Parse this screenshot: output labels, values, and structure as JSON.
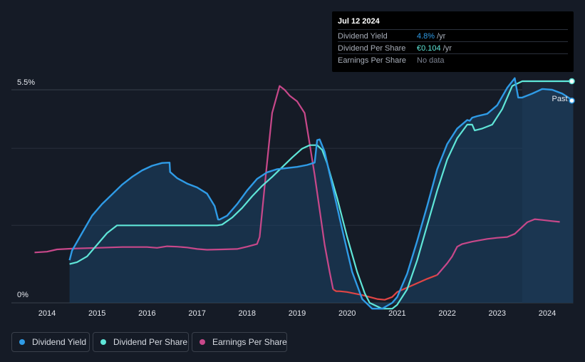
{
  "tooltip": {
    "date": "Jul 12 2024",
    "rows": [
      {
        "label": "Dividend Yield",
        "value": "4.8%",
        "unit": "/yr",
        "color": "#2f9be6"
      },
      {
        "label": "Dividend Per Share",
        "value": "€0.104",
        "unit": "/yr",
        "color": "#5fe6d8"
      },
      {
        "label": "Earnings Per Share",
        "value": "No data",
        "unit": "",
        "color": "#7c8290"
      }
    ]
  },
  "legend": [
    {
      "label": "Dividend Yield",
      "color": "#2f9be6"
    },
    {
      "label": "Dividend Per Share",
      "color": "#5fe6d8"
    },
    {
      "label": "Earnings Per Share",
      "color": "#c8488a"
    }
  ],
  "chart_data": {
    "type": "line",
    "ylim": [
      0,
      5.5
    ],
    "xlim": [
      2013.0,
      2024.52
    ],
    "ytick_labels": [
      "0%",
      "5.5%"
    ],
    "xtick_labels": [
      "2014",
      "2015",
      "2016",
      "2017",
      "2018",
      "2019",
      "2020",
      "2021",
      "2022",
      "2023",
      "2024"
    ],
    "xticks": [
      2014,
      2015,
      2016,
      2017,
      2018,
      2019,
      2020,
      2021,
      2022,
      2023,
      2024
    ],
    "past_label": "Past",
    "past_start": 2023.5,
    "eps_negative_color": "#e04545",
    "series": [
      {
        "name": "Dividend Yield",
        "color": "#2f9be6",
        "x": [
          2014.45,
          2014.5,
          2014.7,
          2014.9,
          2015.1,
          2015.3,
          2015.5,
          2015.7,
          2015.9,
          2016.1,
          2016.3,
          2016.45,
          2016.46,
          2016.6,
          2016.8,
          2017.0,
          2017.2,
          2017.35,
          2017.42,
          2017.45,
          2017.6,
          2017.8,
          2018.0,
          2018.2,
          2018.4,
          2018.6,
          2018.8,
          2019.0,
          2019.2,
          2019.35,
          2019.4,
          2019.45,
          2019.55,
          2019.7,
          2019.9,
          2020.1,
          2020.3,
          2020.5,
          2020.7,
          2020.9,
          2021.0,
          2021.2,
          2021.4,
          2021.6,
          2021.8,
          2022.0,
          2022.2,
          2022.4,
          2022.45,
          2022.5,
          2022.6,
          2022.8,
          2023.0,
          2023.2,
          2023.35,
          2023.42,
          2023.5,
          2023.7,
          2023.9,
          2024.1,
          2024.3,
          2024.52
        ],
        "y": [
          1.1,
          1.35,
          1.8,
          2.25,
          2.55,
          2.8,
          3.05,
          3.25,
          3.42,
          3.54,
          3.61,
          3.62,
          3.38,
          3.22,
          3.08,
          2.98,
          2.82,
          2.5,
          2.15,
          2.15,
          2.25,
          2.55,
          2.9,
          3.2,
          3.37,
          3.45,
          3.48,
          3.51,
          3.56,
          3.62,
          4.2,
          4.22,
          3.9,
          3.05,
          1.9,
          0.8,
          0.1,
          -0.15,
          -0.15,
          0.0,
          0.15,
          0.75,
          1.6,
          2.5,
          3.45,
          4.1,
          4.5,
          4.72,
          4.7,
          4.78,
          4.82,
          4.88,
          5.1,
          5.55,
          5.8,
          5.3,
          5.3,
          5.4,
          5.52,
          5.5,
          5.4,
          5.22
        ]
      },
      {
        "name": "Dividend Per Share",
        "color": "#5fe6d8",
        "x": [
          2014.45,
          2014.6,
          2014.8,
          2015.0,
          2015.2,
          2015.4,
          2015.6,
          2016.0,
          2016.5,
          2017.0,
          2017.4,
          2017.5,
          2017.7,
          2017.9,
          2018.1,
          2018.3,
          2018.5,
          2018.7,
          2018.9,
          2019.1,
          2019.25,
          2019.4,
          2019.5,
          2019.6,
          2019.8,
          2020.0,
          2020.2,
          2020.35,
          2020.45,
          2020.7,
          2020.9,
          2021.0,
          2021.2,
          2021.4,
          2021.6,
          2021.8,
          2022.0,
          2022.2,
          2022.4,
          2022.5,
          2022.55,
          2022.7,
          2022.9,
          2023.1,
          2023.3,
          2023.5,
          2023.7,
          2024.0,
          2024.52
        ],
        "y": [
          1.0,
          1.05,
          1.2,
          1.5,
          1.8,
          2.0,
          2.0,
          2.0,
          2.0,
          2.0,
          2.0,
          2.02,
          2.2,
          2.45,
          2.75,
          3.02,
          3.25,
          3.5,
          3.75,
          3.98,
          4.07,
          4.07,
          3.95,
          3.6,
          2.7,
          1.7,
          0.8,
          0.25,
          0.0,
          -0.15,
          -0.15,
          -0.05,
          0.35,
          1.1,
          2.0,
          2.9,
          3.7,
          4.25,
          4.6,
          4.6,
          4.45,
          4.5,
          4.6,
          5.0,
          5.6,
          5.72,
          5.72,
          5.72,
          5.72
        ]
      },
      {
        "name": "Earnings Per Share",
        "color": "#c8488a",
        "x": [
          2013.75,
          2014.0,
          2014.2,
          2014.5,
          2015.0,
          2015.5,
          2016.0,
          2016.2,
          2016.4,
          2016.6,
          2016.8,
          2017.0,
          2017.2,
          2017.5,
          2017.8,
          2018.0,
          2018.2,
          2018.25,
          2018.35,
          2018.5,
          2018.65,
          2018.75,
          2018.85,
          2019.0,
          2019.15,
          2019.25,
          2019.35,
          2019.45,
          2019.55,
          2019.65,
          2019.72,
          2019.78,
          2019.85,
          2020.0,
          2020.3,
          2020.6,
          2020.75,
          2020.9,
          2021.0,
          2021.3,
          2021.6,
          2021.8,
          2022.0,
          2022.1,
          2022.2,
          2022.3,
          2022.5,
          2022.8,
          2023.0,
          2023.2,
          2023.35,
          2023.6,
          2023.75,
          2023.9,
          2024.1,
          2024.25
        ],
        "y": [
          1.3,
          1.32,
          1.38,
          1.4,
          1.42,
          1.44,
          1.44,
          1.42,
          1.46,
          1.45,
          1.43,
          1.39,
          1.37,
          1.38,
          1.39,
          1.45,
          1.52,
          1.7,
          3.0,
          4.9,
          5.6,
          5.5,
          5.35,
          5.2,
          4.9,
          4.1,
          3.3,
          2.4,
          1.5,
          0.8,
          0.35,
          0.3,
          0.3,
          0.28,
          0.2,
          0.1,
          0.08,
          0.15,
          0.28,
          0.45,
          0.62,
          0.72,
          1.02,
          1.2,
          1.45,
          1.52,
          1.58,
          1.65,
          1.68,
          1.7,
          1.78,
          2.08,
          2.16,
          2.14,
          2.11,
          2.09
        ]
      }
    ]
  }
}
